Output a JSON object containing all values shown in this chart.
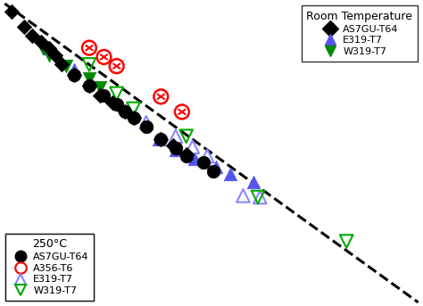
{
  "background_color": "#ffffff",
  "dashed_line": {
    "x": [
      0.01,
      0.99
    ],
    "y": [
      0.99,
      0.01
    ],
    "color": "#000000",
    "linestyle": "--",
    "linewidth": 2.2
  },
  "RT_diamond": {
    "x": [
      0.025,
      0.055,
      0.075,
      0.095,
      0.115,
      0.13,
      0.145,
      0.175,
      0.21,
      0.235,
      0.265,
      0.295,
      0.315,
      0.38,
      0.41,
      0.44
    ],
    "y": [
      0.965,
      0.915,
      0.885,
      0.865,
      0.845,
      0.82,
      0.79,
      0.755,
      0.72,
      0.69,
      0.665,
      0.635,
      0.615,
      0.545,
      0.525,
      0.495
    ],
    "color": "#000000",
    "marker": "D",
    "size": 70,
    "label": "AS7GU-T64"
  },
  "RT_triangle_up": {
    "x": [
      0.115,
      0.175,
      0.375,
      0.415,
      0.46,
      0.51,
      0.545,
      0.6
    ],
    "y": [
      0.845,
      0.775,
      0.545,
      0.51,
      0.48,
      0.455,
      0.43,
      0.405
    ],
    "color": "#5555ee",
    "marker": "^",
    "size": 110,
    "label": "E319-T7"
  },
  "RT_triangle_down": {
    "x": [
      0.1,
      0.115,
      0.155,
      0.21,
      0.235
    ],
    "y": [
      0.845,
      0.82,
      0.785,
      0.745,
      0.715
    ],
    "color": "#008800",
    "marker": "v",
    "size": 110,
    "label": "W319-T7"
  },
  "C250_circle": {
    "x": [
      0.175,
      0.21,
      0.245,
      0.275,
      0.295,
      0.315,
      0.345,
      0.38,
      0.415,
      0.44,
      0.48,
      0.505
    ],
    "y": [
      0.755,
      0.72,
      0.69,
      0.66,
      0.635,
      0.615,
      0.585,
      0.545,
      0.515,
      0.49,
      0.47,
      0.44
    ],
    "color": "#000000",
    "marker": "o",
    "size": 110,
    "label": "AS7GU-T64"
  },
  "C250_circle_x": {
    "x": [
      0.21,
      0.245,
      0.275,
      0.38,
      0.43
    ],
    "y": [
      0.845,
      0.815,
      0.785,
      0.685,
      0.635
    ],
    "color": "#ff0000",
    "size": 130,
    "label": "A356-T6"
  },
  "C250_triangle_up": {
    "x": [
      0.345,
      0.415,
      0.455,
      0.49,
      0.575,
      0.615
    ],
    "y": [
      0.6,
      0.555,
      0.52,
      0.49,
      0.36,
      0.355
    ],
    "color": "#8888ff",
    "marker": "^",
    "size": 110,
    "label": "E319-T7"
  },
  "C250_triangle_down": {
    "x": [
      0.21,
      0.275,
      0.315,
      0.44,
      0.61,
      0.82
    ],
    "y": [
      0.79,
      0.695,
      0.645,
      0.555,
      0.355,
      0.21
    ],
    "color": "#00aa00",
    "marker": "v",
    "size": 110,
    "label": "W319-T7"
  },
  "RT_legend": {
    "title": "Room Temperature",
    "entries": [
      {
        "label": "AS7GU-T64",
        "marker": "D",
        "color": "#000000",
        "filled": true
      },
      {
        "label": "E319-T7",
        "marker": "^",
        "color": "#5555ee",
        "filled": true
      },
      {
        "label": "W319-T7",
        "marker": "v",
        "color": "#008800",
        "filled": true
      }
    ]
  },
  "C250_legend": {
    "title": "250°C",
    "entries": [
      {
        "label": "AS7GU-T64",
        "marker": "o",
        "color": "#000000",
        "filled": true
      },
      {
        "label": "A356-T6",
        "marker": "o",
        "color": "#ff0000",
        "filled": false
      },
      {
        "label": "E319-T7",
        "marker": "^",
        "color": "#8888ff",
        "filled": false
      },
      {
        "label": "W319-T7",
        "marker": "v",
        "color": "#00aa00",
        "filled": false
      }
    ]
  }
}
